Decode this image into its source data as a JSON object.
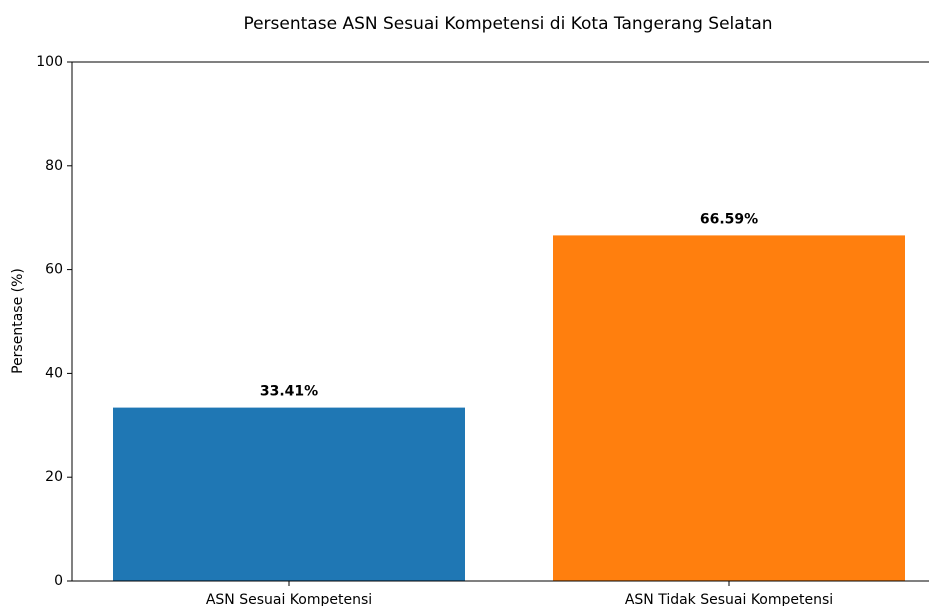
{
  "chart_data": {
    "type": "bar",
    "title": "Persentase ASN Sesuai Kompetensi di Kota Tangerang Selatan",
    "ylabel": "Persentase (%)",
    "categories": [
      "ASN Sesuai Kompetensi",
      "ASN Tidak Sesuai Kompetensi"
    ],
    "values": [
      33.41,
      66.59
    ],
    "value_labels": [
      "33.41%",
      "66.59%"
    ],
    "colors": [
      "#1f77b4",
      "#ff7f0e"
    ],
    "ylim": [
      0,
      100
    ],
    "yticks": [
      0,
      20,
      40,
      60,
      80,
      100
    ]
  }
}
